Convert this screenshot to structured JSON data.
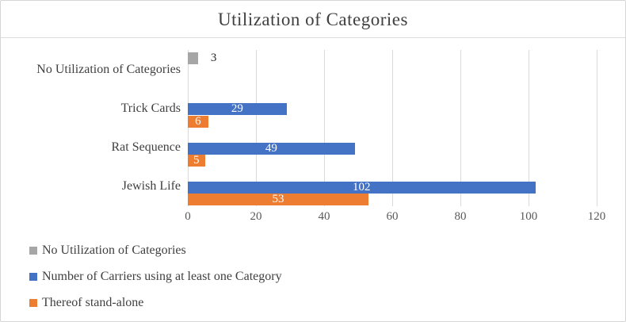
{
  "colors": {
    "grid": "#d9d9d9",
    "axis_text": "#595959",
    "text": "#404040",
    "border": "#d6d6d6",
    "gray_series": "#a6a6a6",
    "blue_series": "#4472c4",
    "orange_series": "#ed7d31"
  },
  "chart_data": {
    "type": "bar",
    "orientation": "horizontal",
    "title": "Utilization of Categories",
    "categories": [
      "No Utilization of Categories",
      "Trick Cards",
      "Rat Sequence",
      "Jewish Life"
    ],
    "series": [
      {
        "name": "No Utilization of Categories",
        "color": "#a6a6a6",
        "values": [
          3,
          null,
          null,
          null
        ],
        "label_position": "outside-end",
        "label_color": "#262626"
      },
      {
        "name": "Number of Carriers using at least one Category",
        "color": "#4472c4",
        "values": [
          null,
          29,
          49,
          102
        ],
        "label_position": "center",
        "label_color": "#ffffff"
      },
      {
        "name": "Thereof stand-alone",
        "color": "#ed7d31",
        "values": [
          null,
          6,
          5,
          53
        ],
        "label_position": "center",
        "label_color": "#ffffff"
      }
    ],
    "xlim": [
      0,
      120
    ],
    "xticks": [
      0,
      20,
      40,
      60,
      80,
      100,
      120
    ],
    "grid": true,
    "legend_position": "bottom-left"
  }
}
